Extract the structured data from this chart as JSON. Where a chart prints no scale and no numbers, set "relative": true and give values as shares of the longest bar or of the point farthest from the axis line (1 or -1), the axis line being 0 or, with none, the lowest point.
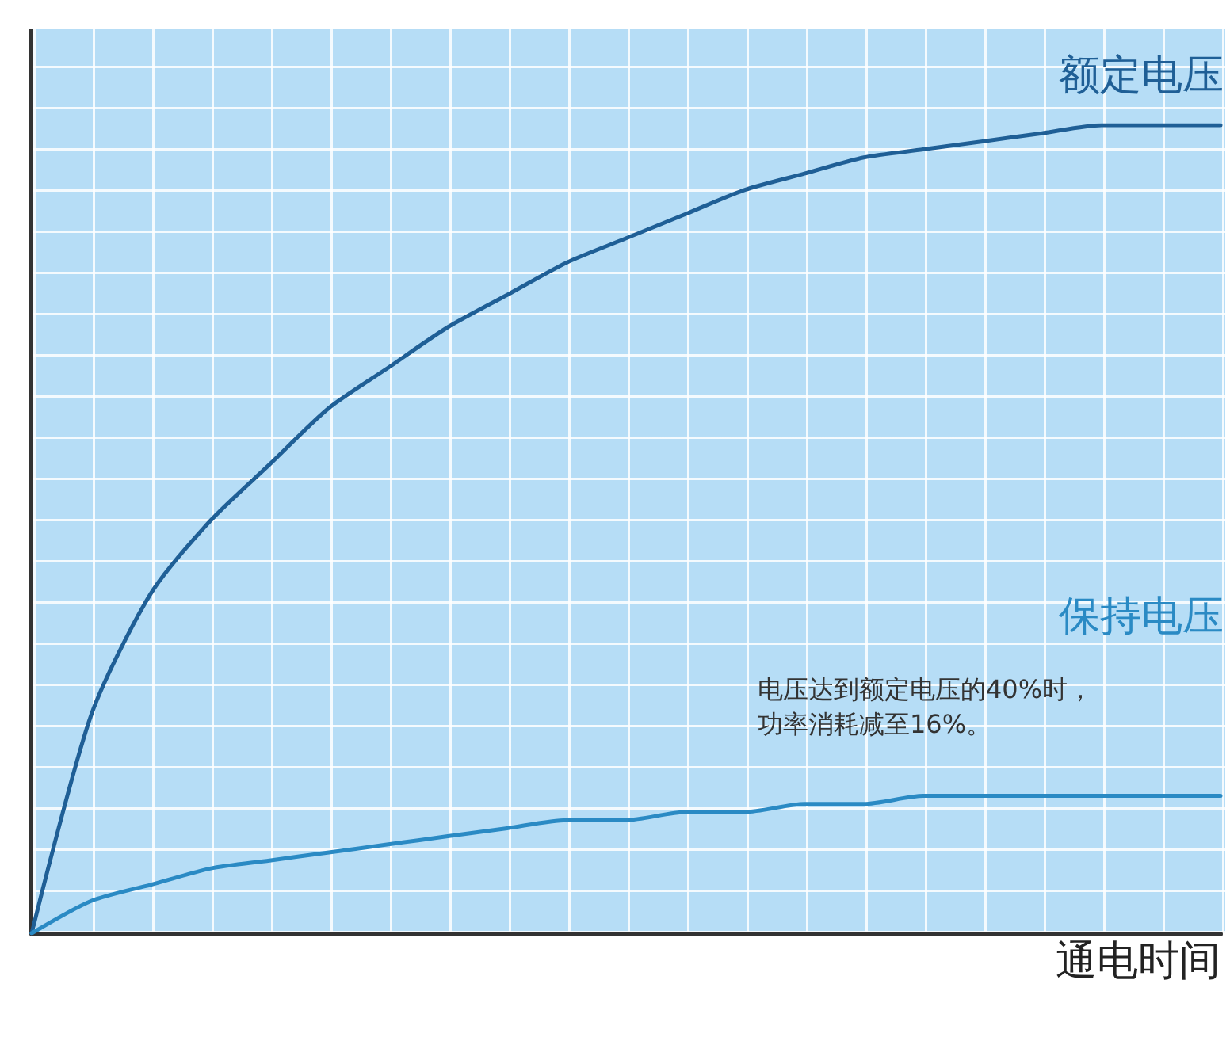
{
  "chart_data": {
    "type": "line",
    "relative": true,
    "xlabel": "通电时间",
    "legend": false,
    "marker": "none",
    "line_style": "solid",
    "categories": [
      null,
      null,
      null,
      null,
      null,
      null,
      null,
      null,
      null,
      null,
      null,
      null,
      null,
      null,
      null,
      null,
      null,
      null,
      null,
      null,
      null
    ],
    "series": [
      {
        "name": "额定电压",
        "color": "#1f5f96",
        "values": [
          0,
          0.27,
          0.42,
          0.51,
          0.58,
          0.65,
          0.7,
          0.75,
          0.79,
          0.83,
          0.86,
          0.89,
          0.92,
          0.94,
          0.96,
          0.97,
          0.98,
          0.99,
          1.0,
          1.0,
          1.0
        ]
      },
      {
        "name": "保持电压",
        "color": "#2a8ac4",
        "values": [
          0,
          0.04,
          0.06,
          0.08,
          0.09,
          0.1,
          0.11,
          0.12,
          0.13,
          0.14,
          0.14,
          0.15,
          0.15,
          0.16,
          0.16,
          0.17,
          0.17,
          0.17,
          0.17,
          0.17,
          0.17
        ]
      }
    ],
    "annotations": [
      "电压达到额定电压的40%时，功率消耗减至16%。"
    ]
  }
}
